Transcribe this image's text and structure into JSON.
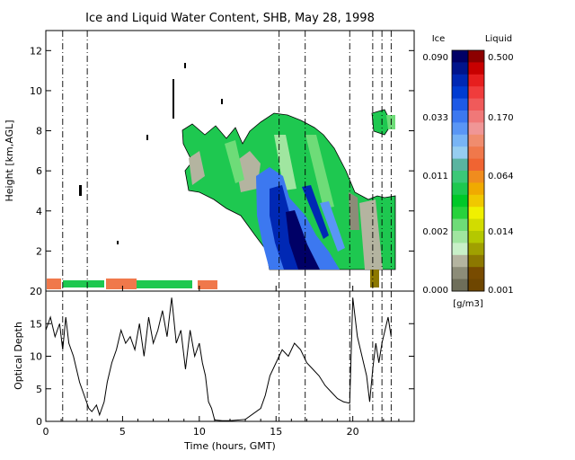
{
  "chart_data": [
    {
      "type": "heatmap",
      "title": "Ice and Liquid Water Content, SHB, May 28, 1998",
      "ylabel": "Height [km,AGL]",
      "xlim": [
        0,
        24
      ],
      "ylim": [
        0,
        13
      ],
      "yticks": [
        2,
        4,
        6,
        8,
        10,
        12
      ],
      "dashed_lines_hours": [
        1.1,
        2.7,
        15.2,
        16.9,
        19.8,
        21.3,
        21.9,
        22.5
      ],
      "grid": false,
      "colorbar": {
        "ice_label": "Ice",
        "liquid_label": "Liquid",
        "unit": "[g/m3]",
        "ice_ticks": [
          "0.090",
          "0.033",
          "0.011",
          "0.002",
          "0.000"
        ],
        "liquid_ticks": [
          "0.500",
          "0.170",
          "0.064",
          "0.014",
          "0.001"
        ],
        "ice_colors": [
          "#000066",
          "#00148c",
          "#0028b4",
          "#003cd2",
          "#1e5ae6",
          "#3c78f0",
          "#5a96f5",
          "#78b4f5",
          "#96cdf0",
          "#5ab4a0",
          "#3cc878",
          "#1ec850",
          "#00c828",
          "#28d23c",
          "#6edc78",
          "#a0e6a0",
          "#c8f0c8",
          "#b4b4a0",
          "#8c8c78",
          "#6e6e5a"
        ],
        "liquid_colors": [
          "#8c0000",
          "#c80000",
          "#e61e1e",
          "#f03c3c",
          "#f05a5a",
          "#f07878",
          "#f09696",
          "#f08c6e",
          "#f0784b",
          "#f06432",
          "#f08c1e",
          "#f0aa00",
          "#f0c800",
          "#f0f000",
          "#d2dc00",
          "#b4c800",
          "#a0a000",
          "#8c7800",
          "#784b00",
          "#6e4600"
        ]
      }
    },
    {
      "type": "line",
      "xlabel": "Time (hours, GMT)",
      "ylabel": "Optical Depth",
      "xlim": [
        0,
        24
      ],
      "ylim": [
        0,
        20
      ],
      "xticks": [
        0,
        5,
        10,
        15,
        20
      ],
      "yticks": [
        0,
        5,
        10,
        15,
        20
      ],
      "series": [
        {
          "x": [
            0.0,
            0.3,
            0.6,
            0.9,
            1.1,
            1.3,
            1.5,
            1.8,
            2.0,
            2.2,
            2.5,
            2.8,
            3.0,
            3.3,
            3.5,
            3.8,
            4.0,
            4.3,
            4.6,
            4.9,
            5.2,
            5.5,
            5.8,
            6.1,
            6.4,
            6.7,
            7.0,
            7.3,
            7.6,
            7.9,
            8.2,
            8.5,
            8.8,
            9.1,
            9.4,
            9.7,
            10.0,
            10.2,
            10.4,
            10.6,
            10.8,
            11.0,
            11.5,
            12.0,
            13.0,
            14.0,
            14.3,
            14.6,
            15.0,
            15.4,
            15.8,
            16.2,
            16.6,
            17.0,
            17.4,
            17.8,
            18.2,
            18.6,
            19.0,
            19.4,
            19.8,
            20.0,
            20.3,
            20.6,
            20.9,
            21.1,
            21.3,
            21.5,
            21.7,
            21.9,
            22.1,
            22.3,
            22.5
          ],
          "y": [
            14,
            16,
            13,
            15,
            11,
            16,
            12,
            10,
            8,
            6,
            4,
            2,
            1.5,
            2.5,
            1,
            3,
            6,
            9,
            11,
            14,
            12,
            13,
            11,
            15,
            10,
            16,
            12,
            14,
            17,
            13,
            19,
            12,
            14,
            8,
            14,
            10,
            12,
            9,
            7,
            3,
            2,
            0.2,
            0.1,
            0.1,
            0.3,
            2,
            4,
            7,
            9,
            11,
            10,
            12,
            11,
            9,
            8,
            7,
            5.5,
            4.5,
            3.5,
            3,
            2.8,
            19,
            13,
            10,
            7,
            3,
            8,
            12,
            9,
            12,
            14,
            16,
            13
          ]
        }
      ]
    }
  ]
}
